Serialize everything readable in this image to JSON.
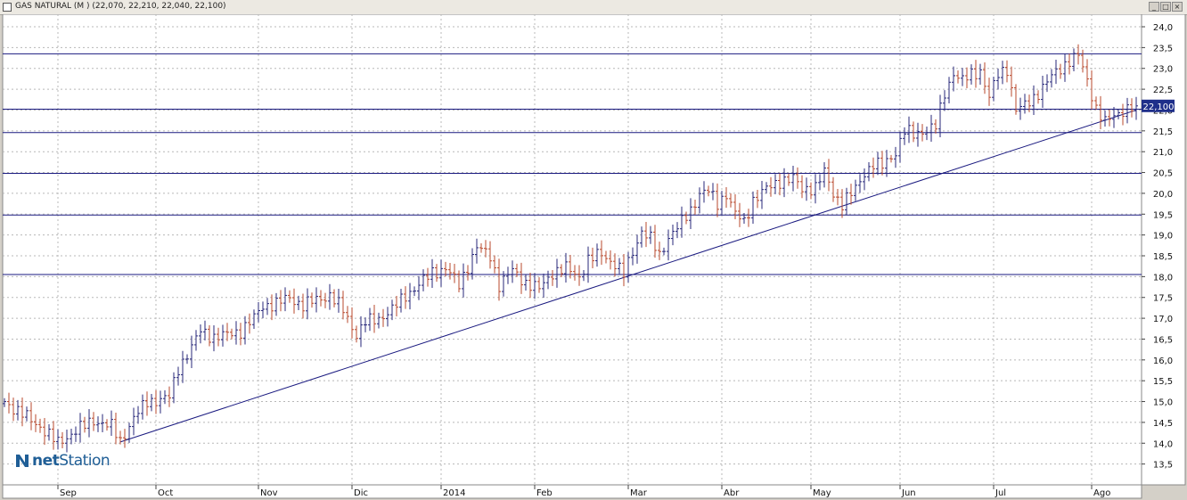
{
  "window": {
    "title": "GAS NATURAL (M ) (22,070, 22,210, 22,040, 22,100)",
    "buttons": [
      "minimize",
      "restore",
      "close"
    ]
  },
  "logo": {
    "prefix": "net",
    "suffix": "Station"
  },
  "colors": {
    "up": "#27277a",
    "down": "#b8482c",
    "trendline": "#1a1a80",
    "hline": "#1a1a80",
    "grid": "#b8b8b8",
    "price_label_bg": "#1f2f8a",
    "axis_bg": "#ffffff"
  },
  "chart_data": {
    "type": "ohlc",
    "title": "GAS NATURAL (M ) (22,070, 22,210, 22,040, 22,100)",
    "ylim": [
      13.0,
      24.3
    ],
    "y_ticks": [
      "24,0",
      "23,5",
      "23,0",
      "22,5",
      "22,0",
      "21,5",
      "21,0",
      "20,5",
      "20,0",
      "19,5",
      "19,0",
      "18,5",
      "18,0",
      "17,5",
      "17,0",
      "16,5",
      "16,0",
      "15,5",
      "15,0",
      "14,5",
      "14,0",
      "13,5"
    ],
    "y_tick_values": [
      24.0,
      23.5,
      23.0,
      22.5,
      22.0,
      21.5,
      21.0,
      20.5,
      20.0,
      19.5,
      19.0,
      18.5,
      18.0,
      17.5,
      17.0,
      16.5,
      16.0,
      15.5,
      15.0,
      14.5,
      14.0,
      13.5
    ],
    "x_ticks": [
      "Sep",
      "Oct",
      "Nov",
      "Dic",
      "2014",
      "Feb",
      "Mar",
      "Abr",
      "May",
      "Jun",
      "Jul",
      "Ago"
    ],
    "x_tick_bars": [
      12,
      34,
      57,
      78,
      98,
      119,
      140,
      161,
      181,
      201,
      222,
      244
    ],
    "bar_count": 255,
    "last_price_label": "22,100",
    "last_price": 22.1,
    "horizontal_lines": [
      23.35,
      22.02,
      21.46,
      20.48,
      19.48,
      18.05
    ],
    "trendline": {
      "start": {
        "bar": 26,
        "price": 14.03
      },
      "end": {
        "bar": 254,
        "price": 22.0
      }
    },
    "anchors": [
      [
        0,
        15.0
      ],
      [
        4,
        14.7
      ],
      [
        8,
        14.4
      ],
      [
        12,
        14.0
      ],
      [
        16,
        14.3
      ],
      [
        20,
        14.55
      ],
      [
        24,
        14.4
      ],
      [
        26,
        14.05
      ],
      [
        29,
        14.6
      ],
      [
        32,
        15.0
      ],
      [
        35,
        15.05
      ],
      [
        37,
        15.1
      ],
      [
        39,
        15.8
      ],
      [
        42,
        16.3
      ],
      [
        44,
        16.7
      ],
      [
        47,
        16.55
      ],
      [
        50,
        16.6
      ],
      [
        53,
        16.7
      ],
      [
        56,
        17.0
      ],
      [
        58,
        17.3
      ],
      [
        61,
        17.35
      ],
      [
        64,
        17.5
      ],
      [
        67,
        17.3
      ],
      [
        70,
        17.45
      ],
      [
        73,
        17.55
      ],
      [
        76,
        17.2
      ],
      [
        79,
        16.6
      ],
      [
        81,
        16.9
      ],
      [
        84,
        17.0
      ],
      [
        87,
        17.2
      ],
      [
        90,
        17.55
      ],
      [
        93,
        17.8
      ],
      [
        96,
        18.1
      ],
      [
        99,
        18.2
      ],
      [
        102,
        17.8
      ],
      [
        104,
        18.25
      ],
      [
        106,
        18.7
      ],
      [
        109,
        18.5
      ],
      [
        111,
        17.8
      ],
      [
        114,
        18.15
      ],
      [
        117,
        17.85
      ],
      [
        120,
        17.7
      ],
      [
        123,
        18.1
      ],
      [
        126,
        18.2
      ],
      [
        129,
        18.0
      ],
      [
        131,
        18.4
      ],
      [
        134,
        18.55
      ],
      [
        137,
        18.3
      ],
      [
        139,
        18.05
      ],
      [
        141,
        18.6
      ],
      [
        143,
        19.1
      ],
      [
        145,
        18.9
      ],
      [
        147,
        18.5
      ],
      [
        149,
        18.95
      ],
      [
        152,
        19.3
      ],
      [
        154,
        19.6
      ],
      [
        156,
        20.0
      ],
      [
        158,
        20.05
      ],
      [
        160,
        19.75
      ],
      [
        162,
        20.0
      ],
      [
        164,
        19.5
      ],
      [
        166,
        19.3
      ],
      [
        168,
        19.85
      ],
      [
        171,
        20.1
      ],
      [
        174,
        20.3
      ],
      [
        177,
        20.35
      ],
      [
        179,
        20.1
      ],
      [
        182,
        20.15
      ],
      [
        184,
        20.5
      ],
      [
        186,
        20.0
      ],
      [
        188,
        19.75
      ],
      [
        191,
        20.1
      ],
      [
        193,
        20.5
      ],
      [
        195,
        20.7
      ],
      [
        197,
        20.65
      ],
      [
        200,
        21.0
      ],
      [
        202,
        21.5
      ],
      [
        204,
        21.4
      ],
      [
        206,
        21.5
      ],
      [
        209,
        21.6
      ],
      [
        211,
        22.4
      ],
      [
        213,
        22.9
      ],
      [
        215,
        22.7
      ],
      [
        217,
        22.85
      ],
      [
        219,
        22.95
      ],
      [
        221,
        22.3
      ],
      [
        223,
        22.85
      ],
      [
        225,
        23.0
      ],
      [
        227,
        22.0
      ],
      [
        229,
        22.1
      ],
      [
        231,
        22.3
      ],
      [
        233,
        22.55
      ],
      [
        235,
        22.8
      ],
      [
        237,
        23.0
      ],
      [
        239,
        23.2
      ],
      [
        241,
        23.3
      ],
      [
        243,
        22.7
      ],
      [
        245,
        22.05
      ],
      [
        247,
        21.7
      ],
      [
        249,
        21.85
      ],
      [
        251,
        22.0
      ],
      [
        254,
        22.1
      ]
    ]
  }
}
